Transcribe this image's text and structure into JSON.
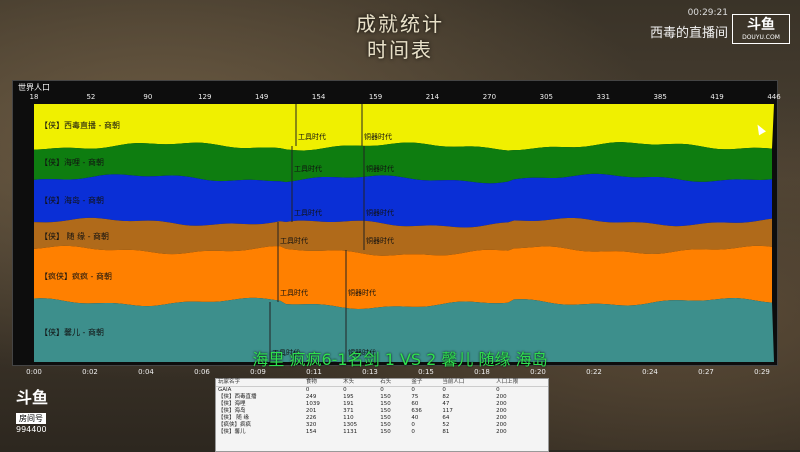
{
  "header": {
    "line1": "成就统计",
    "line2": "时间表"
  },
  "stream": {
    "clock": "00:29:21",
    "name": "西毒的直播间",
    "logo": "斗鱼",
    "logo_sub": "DOUYU.COM"
  },
  "panel": {
    "label": "世界人口"
  },
  "top_ticks": [
    "18",
    "52",
    "90",
    "129",
    "149",
    "154",
    "159",
    "214",
    "270",
    "305",
    "331",
    "385",
    "419",
    "446"
  ],
  "time_ticks": [
    "0:00",
    "0:02",
    "0:04",
    "0:06",
    "0:09",
    "0:11",
    "0:13",
    "0:15",
    "0:18",
    "0:20",
    "0:22",
    "0:24",
    "0:27",
    "0:29"
  ],
  "players": [
    {
      "label": "【侠】西毒直播 - 商朝",
      "color": "#f0f000"
    },
    {
      "label": "【侠】海哩 - 商朝",
      "color": "#0e7d10"
    },
    {
      "label": "【侠】海岛 - 商朝",
      "color": "#0a2fd6"
    },
    {
      "label": "【侠】 随 缘 - 商朝",
      "color": "#b06a1a"
    },
    {
      "label": "【疯侠】疯疯 - 商朝",
      "color": "#ff8000"
    },
    {
      "label": "【侠】馨儿 - 商朝",
      "color": "#3d8f8c"
    }
  ],
  "age_labels": {
    "tool": "工具时代",
    "bronze": "铜器时代"
  },
  "match_text": "海里 疯疯6-1名剑 1 VS 2 馨儿 随缘  海岛",
  "stats": {
    "headers": [
      "玩家名字",
      "食物",
      "木头",
      "石头",
      "金子",
      "当前人口",
      "人口上限"
    ],
    "rows": [
      [
        "GAIA",
        "0",
        "0",
        "0",
        "0",
        "0",
        "0"
      ],
      [
        "【侠】西毒直播",
        "249",
        "195",
        "150",
        "75",
        "82",
        "200"
      ],
      [
        "【侠】海哩",
        "1039",
        "191",
        "150",
        "60",
        "47",
        "200"
      ],
      [
        "【侠】海岛",
        "201",
        "371",
        "150",
        "636",
        "117",
        "200"
      ],
      [
        "【侠】 随 缘",
        "226",
        "110",
        "150",
        "40",
        "64",
        "200"
      ],
      [
        "【疯侠】疯疯",
        "320",
        "1305",
        "150",
        "0",
        "52",
        "200"
      ],
      [
        "【侠】馨儿",
        "154",
        "1131",
        "150",
        "0",
        "81",
        "200"
      ]
    ]
  },
  "room": {
    "logo": "斗鱼",
    "tag": "房间号",
    "number": "994400"
  }
}
